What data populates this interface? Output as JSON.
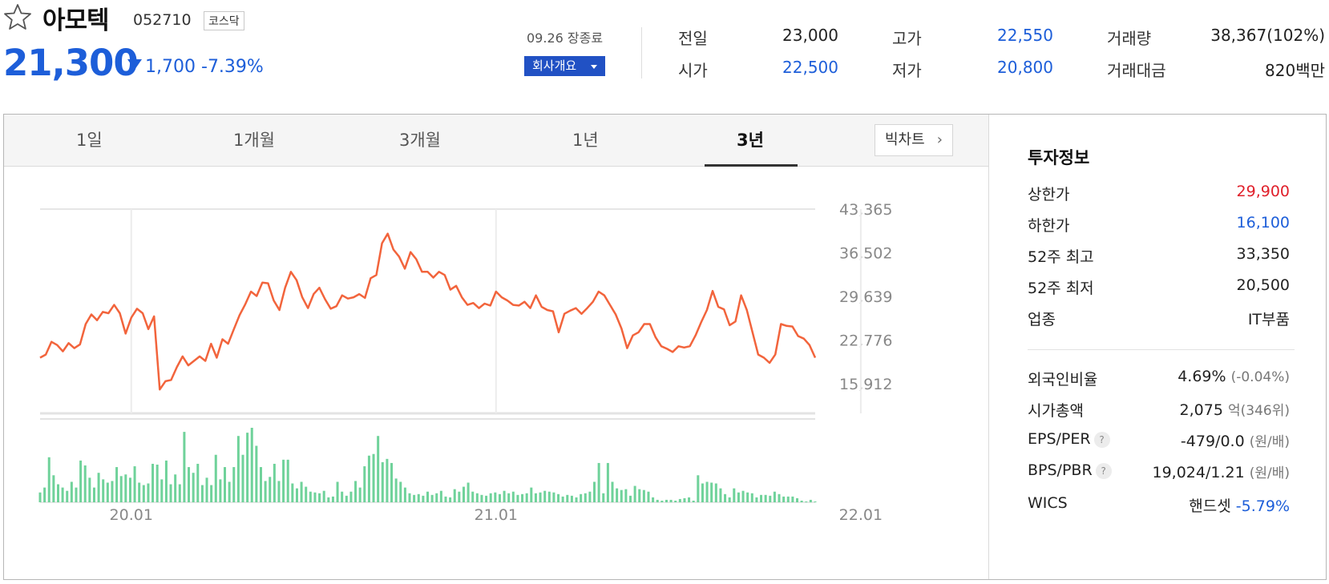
{
  "stock": {
    "name": "아모텍",
    "code": "052710",
    "market": "코스닥",
    "price": "21,300",
    "change": "1,700",
    "change_pct": "-7.39%",
    "session_date": "09.26 장종료",
    "company_button": "회사개요"
  },
  "quote": {
    "prev_close_label": "전일",
    "prev_close": "23,000",
    "high_label": "고가",
    "high": "22,550",
    "volume_label": "거래량",
    "volume": "38,367(102%)",
    "open_label": "시가",
    "open": "22,500",
    "low_label": "저가",
    "low": "20,800",
    "value_label": "거래대금",
    "value": "820백만"
  },
  "tabs": [
    "1일",
    "1개월",
    "3개월",
    "1년",
    "3년"
  ],
  "active_tab": "3년",
  "big_chart_button": "빅차트",
  "invest": {
    "title": "투자정보",
    "upper_limit_label": "상한가",
    "upper_limit": "29,900",
    "lower_limit_label": "하한가",
    "lower_limit": "16,100",
    "high52_label": "52주 최고",
    "high52": "33,350",
    "low52_label": "52주 최저",
    "low52": "20,500",
    "sector_label": "업종",
    "sector": "IT부품",
    "foreign_label": "외국인비율",
    "foreign": "4.69%",
    "foreign_change": "(-0.04%)",
    "mktcap_label": "시가총액",
    "mktcap": "2,075",
    "mktcap_unit": "억",
    "mktcap_rank": "(346위)",
    "eps_label": "EPS/PER",
    "eps": "-479/0.0",
    "eps_unit": "(원/배)",
    "bps_label": "BPS/PBR",
    "bps": "19,024/1.21",
    "bps_unit": "(원/배)",
    "wics_label": "WICS",
    "wics": "핸드셋",
    "wics_change": "-5.79%"
  },
  "colors": {
    "up": "#e0202b",
    "down": "#1d5ed9",
    "line": "#f2643c",
    "volume": "#6fd29a"
  },
  "chart_data": {
    "type": "line",
    "title": "",
    "y_ticks": [
      43365,
      36502,
      29639,
      22776,
      15912
    ],
    "y_tick_labels": [
      "43,365",
      "36,502",
      "29,639",
      "22,776",
      "15,912"
    ],
    "ylim": [
      15912,
      43365
    ],
    "x_tick_labels": [
      "20.01",
      "21.01",
      "22.01"
    ],
    "x_tick_index": [
      16,
      80,
      144
    ],
    "grid": true,
    "series": [
      {
        "values": [
          20000,
          20500,
          22500,
          22000,
          21000,
          22300,
          21500,
          22100,
          25300,
          26800,
          25900,
          27200,
          27000,
          28300,
          27000,
          23800,
          26300,
          27700,
          27000,
          24500,
          26500,
          15000,
          16300,
          16500,
          18500,
          20200,
          18800,
          19500,
          20200,
          19500,
          22200,
          20000,
          22900,
          22200,
          24500,
          26700,
          28400,
          30400,
          29700,
          31800,
          31700,
          29000,
          27500,
          31000,
          33500,
          32200,
          29500,
          27800,
          30000,
          31000,
          29200,
          27700,
          28100,
          29800,
          29300,
          29500,
          30000,
          29400,
          32500,
          33000,
          38000,
          39500,
          37000,
          35900,
          34000,
          36600,
          35500,
          33500,
          33500,
          32600,
          33500,
          33000,
          30700,
          31300,
          29500,
          28300,
          28600,
          27800,
          28500,
          28200,
          30400,
          29500,
          29000,
          28300,
          28200,
          28800,
          27800,
          29800,
          28000,
          27500,
          27300,
          24000,
          26900,
          27400,
          27800,
          26900,
          27800,
          28800,
          30400,
          29800,
          28300,
          26800,
          24600,
          21500,
          23500,
          24000,
          25300,
          25300,
          23200,
          21800,
          21400,
          20900,
          21800,
          21600,
          21800,
          23500,
          25600,
          27500,
          30500,
          28000,
          27600,
          25100,
          25700,
          29800,
          27500,
          24000,
          20500,
          20000,
          19200,
          20500,
          25300,
          25000,
          24900,
          23400,
          23000,
          22000,
          20000
        ]
      }
    ],
    "volume_bar_levels": [
      12,
      18,
      55,
      33,
      22,
      18,
      14,
      25,
      18,
      51,
      45,
      30,
      18,
      36,
      28,
      24,
      26,
      43,
      32,
      34,
      30,
      44,
      24,
      21,
      23,
      47,
      46,
      28,
      51,
      22,
      34,
      22,
      86,
      43,
      36,
      47,
      21,
      30,
      21,
      58,
      28,
      43,
      25,
      43,
      81,
      58,
      85,
      91,
      69,
      43,
      26,
      31,
      47,
      26,
      52,
      52,
      23,
      17,
      25,
      19,
      13,
      12,
      11,
      14,
      6,
      7,
      25,
      13,
      8,
      13,
      26,
      18,
      44,
      57,
      59,
      81,
      49,
      53,
      48,
      29,
      25,
      18,
      11,
      9,
      10,
      8,
      13,
      9,
      11,
      14,
      7,
      6,
      16,
      13,
      19,
      24,
      13,
      11,
      9,
      8,
      11,
      12,
      10,
      14,
      11,
      13,
      9,
      10,
      11,
      18,
      11,
      12,
      14,
      13,
      12,
      10,
      7,
      9,
      8,
      6,
      10,
      11,
      13,
      25,
      48,
      11,
      48,
      25,
      17,
      15,
      16,
      8,
      20,
      16,
      15,
      13,
      6,
      3,
      2,
      3,
      3,
      2,
      4,
      5,
      6,
      2,
      33,
      23,
      25,
      24,
      23,
      17,
      10,
      6,
      17,
      12,
      14,
      12,
      11,
      6,
      9,
      9,
      8,
      13,
      10,
      7,
      7,
      7,
      5,
      2,
      1,
      3,
      1
    ]
  }
}
